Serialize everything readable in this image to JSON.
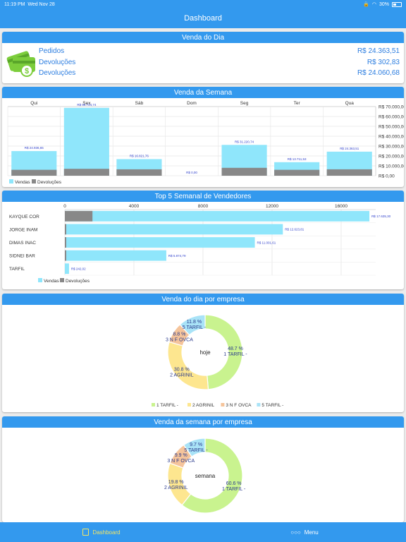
{
  "status": {
    "time": "11:19 PM",
    "date": "Wed Nov 28",
    "battery": "30%"
  },
  "nav": {
    "title": "Dashboard"
  },
  "venda_dia": {
    "header": "Venda do Dia",
    "rows": [
      {
        "label": "Pedidos",
        "value": "R$ 24.363,51"
      },
      {
        "label": "Devoluções",
        "value": "R$ 302,83"
      },
      {
        "label": "Devoluções",
        "value": "R$ 24.060,68"
      }
    ]
  },
  "venda_semana": {
    "header": "Venda da Semana"
  },
  "top5": {
    "header": "Top 5 Semanal de Vendedores"
  },
  "empresa_dia": {
    "header": "Venda do dia por empresa"
  },
  "empresa_semana": {
    "header": "Venda da semana por empresa"
  },
  "tabs": {
    "dashboard": "Dashboard",
    "menu": "Menu"
  },
  "colors": {
    "accent": "#3399ee",
    "vendas": "#8fe6fb",
    "devolucoes": "#888888"
  },
  "chart_data": [
    {
      "type": "bar",
      "categories": [
        "Qui",
        "Sex",
        "Sáb",
        "Dom",
        "Seg",
        "Ter",
        "Qua"
      ],
      "series": [
        {
          "name": "Vendas",
          "values": [
            24936.65,
            68724.74,
            16821.76,
            0,
            31220.74,
            13711.53,
            24363.51
          ],
          "labels": [
            "R$ 24.936,65",
            "R$ 68.724,74",
            "R$ 16.821,76",
            "R$ 0,00",
            "R$ 31.220,74",
            "R$ 13.711,53",
            "R$ 24.363,51"
          ]
        },
        {
          "name": "Devoluções",
          "values": [
            6000,
            7000,
            6500,
            0,
            8000,
            6000,
            6500
          ]
        }
      ],
      "ylim": [
        0,
        70000
      ],
      "yticks": [
        "R$ 0,00",
        "R$ 10.000,00",
        "R$ 20.000,00",
        "R$ 30.000,00",
        "R$ 40.000,00",
        "R$ 50.000,00",
        "R$ 60.000,00",
        "R$ 70.000,00"
      ],
      "legend": "bottom-left"
    },
    {
      "type": "bar",
      "orientation": "horizontal",
      "categories": [
        "KAYQUE COR",
        "JORGE INAM",
        "DIMAS INAC",
        "SIDNEI BAR",
        "TARFIL"
      ],
      "series": [
        {
          "name": "Vendas",
          "values": [
            17635.3,
            12623.81,
            11001.61,
            5874.79,
            242.02
          ],
          "labels": [
            "R$ 17.635,30",
            "R$ 12.623,81",
            "R$ 11.001,61",
            "R$ 5.874,79",
            "R$ 242,02"
          ]
        },
        {
          "name": "Devoluções",
          "values": [
            1600,
            80,
            80,
            80,
            0
          ]
        }
      ],
      "xlim": [
        0,
        18000
      ],
      "xticks": [
        "0",
        "4000",
        "8000",
        "12000",
        "16000"
      ],
      "legend": "bottom-left"
    },
    {
      "type": "pie",
      "center_label": "hoje",
      "slices": [
        {
          "name": "1 TARFIL -",
          "value": 48.7,
          "label": "48.7 %"
        },
        {
          "name": "2 AGRINIL",
          "value": 30.8,
          "label": "30.8 %"
        },
        {
          "name": "3 N F OVCA",
          "value": 8.8,
          "label": "8.8 %"
        },
        {
          "name": "5 TARFIL -",
          "value": 11.8,
          "label": "11.8 %"
        }
      ],
      "legend": "bottom"
    },
    {
      "type": "pie",
      "center_label": "semana",
      "slices": [
        {
          "name": "1 TARFIL -",
          "value": 60.6,
          "label": "60.6 %"
        },
        {
          "name": "2 AGRINIL",
          "value": 19.8,
          "label": "19.8 %"
        },
        {
          "name": "3 N F OVCA",
          "value": 9.9,
          "label": "9.9 %"
        },
        {
          "name": "5 TARFIL -",
          "value": 9.7,
          "label": "9.7 %"
        }
      ]
    }
  ],
  "pie_colors": [
    "#c9f38f",
    "#fde68f",
    "#f5c49b",
    "#a9e3f7"
  ]
}
